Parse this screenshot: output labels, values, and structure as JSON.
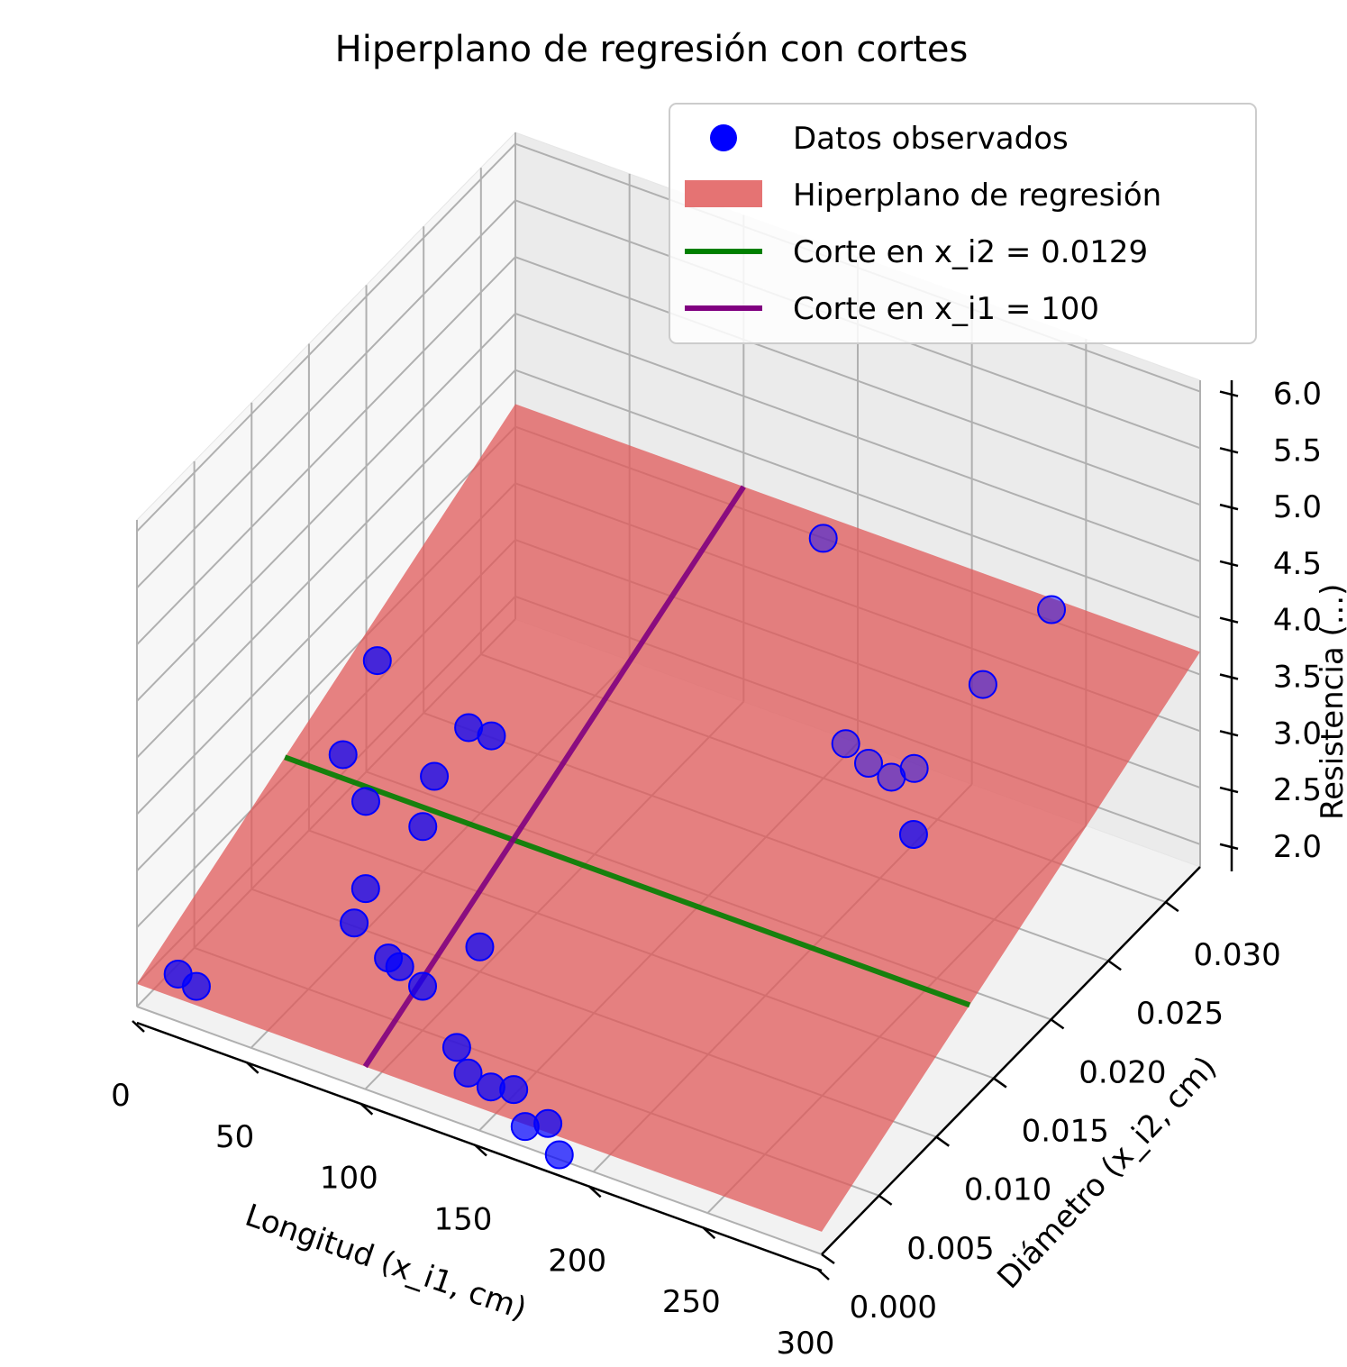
{
  "chart_data": {
    "type": "scatter",
    "title": "Hiperplano de regresión con cortes",
    "xlabel": "Longitud (x_i1, cm)",
    "ylabel": "Diámetro (x_i2, cm)",
    "zlabel": "Resistencia (...)",
    "xlim": [
      0,
      300
    ],
    "ylim": [
      0,
      0.033
    ],
    "zlim": [
      1.8,
      6.1
    ],
    "x_ticks": [
      "0",
      "50",
      "100",
      "150",
      "200",
      "250",
      "300"
    ],
    "y_ticks": [
      "0.000",
      "0.005",
      "0.010",
      "0.015",
      "0.020",
      "0.025",
      "0.030"
    ],
    "z_ticks": [
      "2.0",
      "2.5",
      "3.0",
      "3.5",
      "4.0",
      "4.5",
      "5.0",
      "5.5",
      "6.0"
    ],
    "grid": true,
    "legend_position": "top-right",
    "legend": [
      {
        "label": "Datos observados",
        "color": "#0000ff",
        "kind": "marker"
      },
      {
        "label": "Hiperplano de regresión",
        "color": "#e57373",
        "kind": "patch"
      },
      {
        "label": "Corte en x_i2 = 0.0129",
        "color": "#008000",
        "kind": "line"
      },
      {
        "label": "Corte en x_i1 = 100",
        "color": "#800080",
        "kind": "line"
      }
    ],
    "series": [
      {
        "name": "Datos observados",
        "points": [
          [
            12,
            0.0012,
            2.05
          ],
          [
            20,
            0.0012,
            2.0
          ],
          [
            30,
            0.012,
            3.0
          ],
          [
            40,
            0.013,
            3.8
          ],
          [
            45,
            0.011,
            2.8
          ],
          [
            70,
            0.012,
            3.1
          ],
          [
            80,
            0.013,
            3.5
          ],
          [
            90,
            0.013,
            3.5
          ],
          [
            75,
            0.01,
            2.9
          ],
          [
            60,
            0.008,
            2.45
          ],
          [
            60,
            0.007,
            2.25
          ],
          [
            75,
            0.007,
            2.05
          ],
          [
            85,
            0.006,
            2.15
          ],
          [
            95,
            0.006,
            2.05
          ],
          [
            110,
            0.008,
            2.3
          ],
          [
            120,
            0.004,
            1.9
          ],
          [
            130,
            0.003,
            1.85
          ],
          [
            140,
            0.003,
            1.8
          ],
          [
            150,
            0.003,
            1.85
          ],
          [
            160,
            0.002,
            1.7
          ],
          [
            170,
            0.002,
            1.8
          ],
          [
            180,
            0.001,
            1.7
          ],
          [
            160,
            0.028,
            4.2
          ],
          [
            200,
            0.022,
            3.3
          ],
          [
            210,
            0.022,
            3.2
          ],
          [
            220,
            0.022,
            3.15
          ],
          [
            230,
            0.022,
            3.3
          ],
          [
            240,
            0.026,
            3.7
          ],
          [
            260,
            0.028,
            4.3
          ],
          [
            290,
            0.01,
            4.4
          ]
        ]
      }
    ],
    "plane": {
      "name": "Hiperplano de regresión",
      "corners": [
        [
          0,
          0,
          2.0
        ],
        [
          300,
          0,
          2.0
        ],
        [
          300,
          0.033,
          3.7
        ],
        [
          0,
          0.033,
          3.7
        ]
      ]
    },
    "cuts": [
      {
        "name": "Corte en x_i2 = 0.0129",
        "fixed": "x2",
        "value": 0.0129,
        "color": "#008000"
      },
      {
        "name": "Corte en x_i1 = 100",
        "fixed": "x1",
        "value": 100,
        "color": "#800080"
      }
    ]
  }
}
